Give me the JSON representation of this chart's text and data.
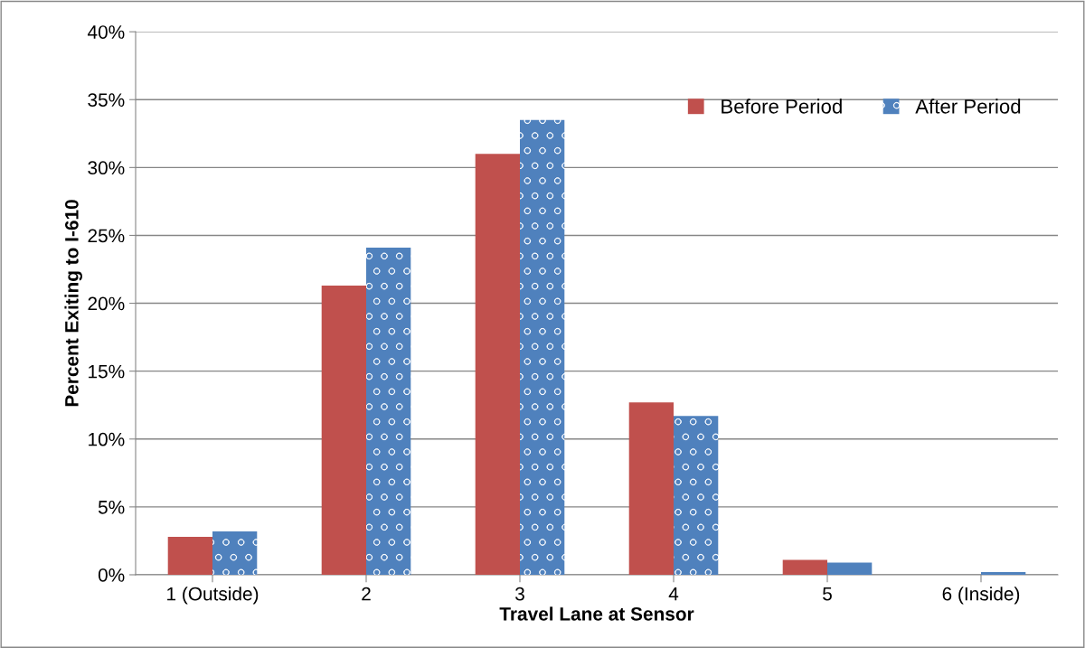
{
  "chart_data": {
    "type": "bar",
    "xlabel": "Travel Lane at Sensor",
    "ylabel": "Percent Exiting to I-610",
    "categories": [
      "1 (Outside)",
      "2",
      "3",
      "4",
      "5",
      "6 (Inside)"
    ],
    "series": [
      {
        "name": "Before Period",
        "color": "#c0504d",
        "values": [
          2.8,
          21.3,
          31.0,
          12.7,
          1.1,
          0
        ]
      },
      {
        "name": "After Period",
        "color": "#4f81bd",
        "values": [
          3.2,
          24.1,
          33.5,
          11.7,
          0.9,
          0.2
        ]
      }
    ],
    "ylim": [
      0,
      40
    ],
    "yticks": [
      {
        "value": 0,
        "label": "0%"
      },
      {
        "value": 5,
        "label": "5%"
      },
      {
        "value": 10,
        "label": "10%"
      },
      {
        "value": 15,
        "label": "15%"
      },
      {
        "value": 20,
        "label": "20%"
      },
      {
        "value": 25,
        "label": "25%"
      },
      {
        "value": 30,
        "label": "30%"
      },
      {
        "value": 35,
        "label": "35%"
      },
      {
        "value": 40,
        "label": "40%"
      }
    ],
    "grid": "y",
    "legend": "top right"
  }
}
